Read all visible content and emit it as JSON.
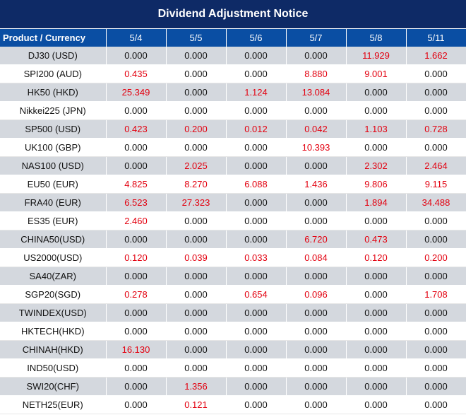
{
  "title": "Dividend Adjustment Notice",
  "header": {
    "product": "Product / Currency",
    "dates": [
      "5/4",
      "5/5",
      "5/6",
      "5/7",
      "5/8",
      "5/11"
    ]
  },
  "colors": {
    "title_bg": "#0e2a66",
    "header_bg": "#0a4ea3",
    "stripe": "#d4d8de",
    "highlight": "#e3000f"
  },
  "rows": [
    {
      "name": "DJ30 (USD)",
      "values": [
        "0.000",
        "0.000",
        "0.000",
        "0.000",
        "11.929",
        "1.662"
      ]
    },
    {
      "name": "SPI200 (AUD)",
      "values": [
        "0.435",
        "0.000",
        "0.000",
        "8.880",
        "9.001",
        "0.000"
      ]
    },
    {
      "name": "HK50 (HKD)",
      "values": [
        "25.349",
        "0.000",
        "1.124",
        "13.084",
        "0.000",
        "0.000"
      ]
    },
    {
      "name": "Nikkei225 (JPN)",
      "values": [
        "0.000",
        "0.000",
        "0.000",
        "0.000",
        "0.000",
        "0.000"
      ]
    },
    {
      "name": "SP500 (USD)",
      "values": [
        "0.423",
        "0.200",
        "0.012",
        "0.042",
        "1.103",
        "0.728"
      ]
    },
    {
      "name": "UK100 (GBP)",
      "values": [
        "0.000",
        "0.000",
        "0.000",
        "10.393",
        "0.000",
        "0.000"
      ]
    },
    {
      "name": "NAS100 (USD)",
      "values": [
        "0.000",
        "2.025",
        "0.000",
        "0.000",
        "2.302",
        "2.464"
      ]
    },
    {
      "name": "EU50 (EUR)",
      "values": [
        "4.825",
        "8.270",
        "6.088",
        "1.436",
        "9.806",
        "9.115"
      ]
    },
    {
      "name": "FRA40 (EUR)",
      "values": [
        "6.523",
        "27.323",
        "0.000",
        "0.000",
        "1.894",
        "34.488"
      ]
    },
    {
      "name": "ES35 (EUR)",
      "values": [
        "2.460",
        "0.000",
        "0.000",
        "0.000",
        "0.000",
        "0.000"
      ]
    },
    {
      "name": "CHINA50(USD)",
      "values": [
        "0.000",
        "0.000",
        "0.000",
        "6.720",
        "0.473",
        "0.000"
      ]
    },
    {
      "name": "US2000(USD)",
      "values": [
        "0.120",
        "0.039",
        "0.033",
        "0.084",
        "0.120",
        "0.200"
      ]
    },
    {
      "name": "SA40(ZAR)",
      "values": [
        "0.000",
        "0.000",
        "0.000",
        "0.000",
        "0.000",
        "0.000"
      ]
    },
    {
      "name": "SGP20(SGD)",
      "values": [
        "0.278",
        "0.000",
        "0.654",
        "0.096",
        "0.000",
        "1.708"
      ]
    },
    {
      "name": "TWINDEX(USD)",
      "values": [
        "0.000",
        "0.000",
        "0.000",
        "0.000",
        "0.000",
        "0.000"
      ]
    },
    {
      "name": "HKTECH(HKD)",
      "values": [
        "0.000",
        "0.000",
        "0.000",
        "0.000",
        "0.000",
        "0.000"
      ]
    },
    {
      "name": "CHINAH(HKD)",
      "values": [
        "16.130",
        "0.000",
        "0.000",
        "0.000",
        "0.000",
        "0.000"
      ]
    },
    {
      "name": "IND50(USD)",
      "values": [
        "0.000",
        "0.000",
        "0.000",
        "0.000",
        "0.000",
        "0.000"
      ]
    },
    {
      "name": "SWI20(CHF)",
      "values": [
        "0.000",
        "1.356",
        "0.000",
        "0.000",
        "0.000",
        "0.000"
      ]
    },
    {
      "name": "NETH25(EUR)",
      "values": [
        "0.000",
        "0.121",
        "0.000",
        "0.000",
        "0.000",
        "0.000"
      ]
    }
  ]
}
